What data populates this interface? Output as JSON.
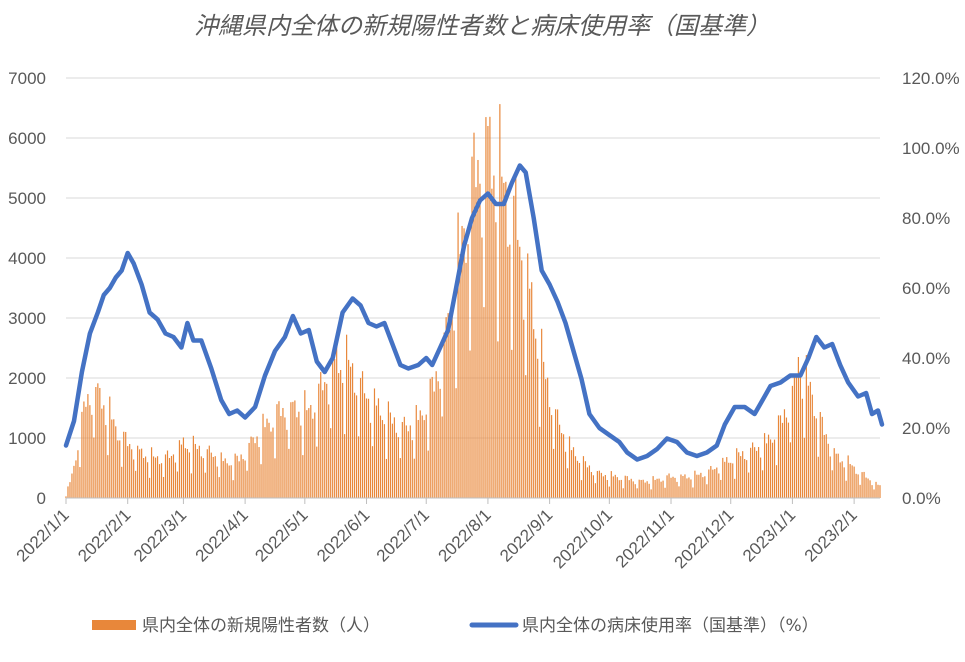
{
  "chart_data": {
    "type": "bar+line",
    "title": "沖縄県内全体の新規陽性者数と病床使用率（国基準）",
    "x_ticks": [
      "2022/1/1",
      "2022/2/1",
      "2022/3/1",
      "2022/4/1",
      "2022/5/1",
      "2022/6/1",
      "2022/7/1",
      "2022/8/1",
      "2022/9/1",
      "2022/10/1",
      "2022/11/1",
      "2022/12/1",
      "2023/1/1",
      "2023/2/1"
    ],
    "x_range": [
      "2022/1/1",
      "2023/2/14"
    ],
    "y_left": {
      "min": 0,
      "max": 7000,
      "step": 1000,
      "ticks": [
        "0",
        "1000",
        "2000",
        "3000",
        "4000",
        "5000",
        "6000",
        "7000"
      ]
    },
    "y_right": {
      "min": 0,
      "max": 1.2,
      "step": 0.2,
      "ticks": [
        "0.0%",
        "20.0%",
        "40.0%",
        "60.0%",
        "80.0%",
        "100.0%",
        "120.0%"
      ]
    },
    "grid": "horizontal",
    "legend_position": "bottom",
    "series": [
      {
        "name": "県内全体の新規陽性者数（人）",
        "kind": "bar",
        "axis": "left",
        "color": "#E8873A",
        "values_weekly_avg": [
          {
            "date": "2022/1/1",
            "value": 50
          },
          {
            "date": "2022/1/4",
            "value": 350
          },
          {
            "date": "2022/1/8",
            "value": 1000
          },
          {
            "date": "2022/1/11",
            "value": 1500
          },
          {
            "date": "2022/1/15",
            "value": 1700
          },
          {
            "date": "2022/1/18",
            "value": 1600
          },
          {
            "date": "2022/1/22",
            "value": 1350
          },
          {
            "date": "2022/1/26",
            "value": 1100
          },
          {
            "date": "2022/2/1",
            "value": 850
          },
          {
            "date": "2022/2/8",
            "value": 700
          },
          {
            "date": "2022/2/15",
            "value": 620
          },
          {
            "date": "2022/2/22",
            "value": 640
          },
          {
            "date": "2022/3/1",
            "value": 850
          },
          {
            "date": "2022/3/8",
            "value": 780
          },
          {
            "date": "2022/3/15",
            "value": 700
          },
          {
            "date": "2022/3/22",
            "value": 560
          },
          {
            "date": "2022/3/29",
            "value": 600
          },
          {
            "date": "2022/4/5",
            "value": 900
          },
          {
            "date": "2022/4/12",
            "value": 1150
          },
          {
            "date": "2022/4/19",
            "value": 1350
          },
          {
            "date": "2022/4/26",
            "value": 1400
          },
          {
            "date": "2022/5/3",
            "value": 1350
          },
          {
            "date": "2022/5/10",
            "value": 1750
          },
          {
            "date": "2022/5/17",
            "value": 2150
          },
          {
            "date": "2022/5/24",
            "value": 2050
          },
          {
            "date": "2022/5/31",
            "value": 1650
          },
          {
            "date": "2022/6/7",
            "value": 1400
          },
          {
            "date": "2022/6/14",
            "value": 1200
          },
          {
            "date": "2022/6/21",
            "value": 1100
          },
          {
            "date": "2022/6/28",
            "value": 1250
          },
          {
            "date": "2022/7/5",
            "value": 1750
          },
          {
            "date": "2022/7/12",
            "value": 2700
          },
          {
            "date": "2022/7/19",
            "value": 4000
          },
          {
            "date": "2022/7/26",
            "value": 5100
          },
          {
            "date": "2022/8/1",
            "value": 5500
          },
          {
            "date": "2022/8/8",
            "value": 4900
          },
          {
            "date": "2022/8/15",
            "value": 4300
          },
          {
            "date": "2022/8/22",
            "value": 3200
          },
          {
            "date": "2022/8/29",
            "value": 2000
          },
          {
            "date": "2022/9/5",
            "value": 1200
          },
          {
            "date": "2022/9/12",
            "value": 750
          },
          {
            "date": "2022/9/19",
            "value": 520
          },
          {
            "date": "2022/9/26",
            "value": 380
          },
          {
            "date": "2022/10/3",
            "value": 340
          },
          {
            "date": "2022/10/10",
            "value": 300
          },
          {
            "date": "2022/10/17",
            "value": 260
          },
          {
            "date": "2022/10/24",
            "value": 280
          },
          {
            "date": "2022/10/31",
            "value": 330
          },
          {
            "date": "2022/11/7",
            "value": 330
          },
          {
            "date": "2022/11/14",
            "value": 350
          },
          {
            "date": "2022/11/21",
            "value": 430
          },
          {
            "date": "2022/11/28",
            "value": 560
          },
          {
            "date": "2022/12/5",
            "value": 660
          },
          {
            "date": "2022/12/12",
            "value": 760
          },
          {
            "date": "2022/12/19",
            "value": 860
          },
          {
            "date": "2022/12/26",
            "value": 1150
          },
          {
            "date": "2023/1/1",
            "value": 1650
          },
          {
            "date": "2023/1/5",
            "value": 2000
          },
          {
            "date": "2023/1/10",
            "value": 1700
          },
          {
            "date": "2023/1/16",
            "value": 1100
          },
          {
            "date": "2023/1/23",
            "value": 650
          },
          {
            "date": "2023/1/30",
            "value": 520
          },
          {
            "date": "2023/2/6",
            "value": 350
          },
          {
            "date": "2023/2/14",
            "value": 180
          }
        ],
        "peaks": [
          {
            "date": "2022/1/16",
            "value": 1850
          },
          {
            "date": "2022/5/17",
            "value": 2550
          },
          {
            "date": "2022/8/1",
            "value": 6200
          },
          {
            "date": "2023/1/4",
            "value": 2350
          }
        ]
      },
      {
        "name": "県内全体の病床使用率（国基準）（%）",
        "kind": "line",
        "axis": "right",
        "color": "#4472C4",
        "values": [
          {
            "date": "2022/1/1",
            "value": 0.15
          },
          {
            "date": "2022/1/5",
            "value": 0.22
          },
          {
            "date": "2022/1/9",
            "value": 0.36
          },
          {
            "date": "2022/1/13",
            "value": 0.47
          },
          {
            "date": "2022/1/17",
            "value": 0.53
          },
          {
            "date": "2022/1/20",
            "value": 0.58
          },
          {
            "date": "2022/1/23",
            "value": 0.6
          },
          {
            "date": "2022/1/26",
            "value": 0.63
          },
          {
            "date": "2022/1/29",
            "value": 0.65
          },
          {
            "date": "2022/2/1",
            "value": 0.7
          },
          {
            "date": "2022/2/4",
            "value": 0.67
          },
          {
            "date": "2022/2/8",
            "value": 0.61
          },
          {
            "date": "2022/2/12",
            "value": 0.53
          },
          {
            "date": "2022/2/16",
            "value": 0.51
          },
          {
            "date": "2022/2/20",
            "value": 0.47
          },
          {
            "date": "2022/2/24",
            "value": 0.46
          },
          {
            "date": "2022/2/28",
            "value": 0.43
          },
          {
            "date": "2022/3/3",
            "value": 0.5
          },
          {
            "date": "2022/3/6",
            "value": 0.45
          },
          {
            "date": "2022/3/10",
            "value": 0.45
          },
          {
            "date": "2022/3/15",
            "value": 0.37
          },
          {
            "date": "2022/3/20",
            "value": 0.28
          },
          {
            "date": "2022/3/24",
            "value": 0.24
          },
          {
            "date": "2022/3/28",
            "value": 0.25
          },
          {
            "date": "2022/4/1",
            "value": 0.23
          },
          {
            "date": "2022/4/6",
            "value": 0.26
          },
          {
            "date": "2022/4/11",
            "value": 0.35
          },
          {
            "date": "2022/4/16",
            "value": 0.42
          },
          {
            "date": "2022/4/21",
            "value": 0.46
          },
          {
            "date": "2022/4/25",
            "value": 0.52
          },
          {
            "date": "2022/4/29",
            "value": 0.47
          },
          {
            "date": "2022/5/3",
            "value": 0.48
          },
          {
            "date": "2022/5/7",
            "value": 0.39
          },
          {
            "date": "2022/5/11",
            "value": 0.36
          },
          {
            "date": "2022/5/15",
            "value": 0.4
          },
          {
            "date": "2022/5/20",
            "value": 0.53
          },
          {
            "date": "2022/5/25",
            "value": 0.57
          },
          {
            "date": "2022/5/29",
            "value": 0.55
          },
          {
            "date": "2022/6/2",
            "value": 0.5
          },
          {
            "date": "2022/6/6",
            "value": 0.49
          },
          {
            "date": "2022/6/10",
            "value": 0.5
          },
          {
            "date": "2022/6/14",
            "value": 0.44
          },
          {
            "date": "2022/6/18",
            "value": 0.38
          },
          {
            "date": "2022/6/22",
            "value": 0.37
          },
          {
            "date": "2022/6/27",
            "value": 0.38
          },
          {
            "date": "2022/7/1",
            "value": 0.4
          },
          {
            "date": "2022/7/4",
            "value": 0.38
          },
          {
            "date": "2022/7/8",
            "value": 0.43
          },
          {
            "date": "2022/7/12",
            "value": 0.48
          },
          {
            "date": "2022/7/16",
            "value": 0.6
          },
          {
            "date": "2022/7/20",
            "value": 0.72
          },
          {
            "date": "2022/7/24",
            "value": 0.8
          },
          {
            "date": "2022/7/28",
            "value": 0.85
          },
          {
            "date": "2022/8/1",
            "value": 0.87
          },
          {
            "date": "2022/8/5",
            "value": 0.84
          },
          {
            "date": "2022/8/9",
            "value": 0.84
          },
          {
            "date": "2022/8/13",
            "value": 0.9
          },
          {
            "date": "2022/8/17",
            "value": 0.95
          },
          {
            "date": "2022/8/20",
            "value": 0.93
          },
          {
            "date": "2022/8/24",
            "value": 0.8
          },
          {
            "date": "2022/8/28",
            "value": 0.65
          },
          {
            "date": "2022/9/1",
            "value": 0.61
          },
          {
            "date": "2022/9/5",
            "value": 0.56
          },
          {
            "date": "2022/9/9",
            "value": 0.5
          },
          {
            "date": "2022/9/13",
            "value": 0.42
          },
          {
            "date": "2022/9/17",
            "value": 0.34
          },
          {
            "date": "2022/9/21",
            "value": 0.24
          },
          {
            "date": "2022/9/26",
            "value": 0.2
          },
          {
            "date": "2022/10/1",
            "value": 0.18
          },
          {
            "date": "2022/10/6",
            "value": 0.16
          },
          {
            "date": "2022/10/10",
            "value": 0.13
          },
          {
            "date": "2022/10/15",
            "value": 0.11
          },
          {
            "date": "2022/10/20",
            "value": 0.12
          },
          {
            "date": "2022/10/25",
            "value": 0.14
          },
          {
            "date": "2022/10/30",
            "value": 0.17
          },
          {
            "date": "2022/11/4",
            "value": 0.16
          },
          {
            "date": "2022/11/9",
            "value": 0.13
          },
          {
            "date": "2022/11/14",
            "value": 0.12
          },
          {
            "date": "2022/11/19",
            "value": 0.13
          },
          {
            "date": "2022/11/24",
            "value": 0.15
          },
          {
            "date": "2022/11/28",
            "value": 0.21
          },
          {
            "date": "2022/12/3",
            "value": 0.26
          },
          {
            "date": "2022/12/8",
            "value": 0.26
          },
          {
            "date": "2022/12/13",
            "value": 0.24
          },
          {
            "date": "2022/12/17",
            "value": 0.28
          },
          {
            "date": "2022/12/21",
            "value": 0.32
          },
          {
            "date": "2022/12/26",
            "value": 0.33
          },
          {
            "date": "2022/12/31",
            "value": 0.35
          },
          {
            "date": "2023/1/5",
            "value": 0.35
          },
          {
            "date": "2023/1/9",
            "value": 0.4
          },
          {
            "date": "2023/1/13",
            "value": 0.46
          },
          {
            "date": "2023/1/17",
            "value": 0.43
          },
          {
            "date": "2023/1/21",
            "value": 0.44
          },
          {
            "date": "2023/1/25",
            "value": 0.38
          },
          {
            "date": "2023/1/29",
            "value": 0.33
          },
          {
            "date": "2023/2/3",
            "value": 0.29
          },
          {
            "date": "2023/2/7",
            "value": 0.3
          },
          {
            "date": "2023/2/10",
            "value": 0.24
          },
          {
            "date": "2023/2/13",
            "value": 0.25
          },
          {
            "date": "2023/2/15",
            "value": 0.21
          }
        ]
      }
    ]
  }
}
